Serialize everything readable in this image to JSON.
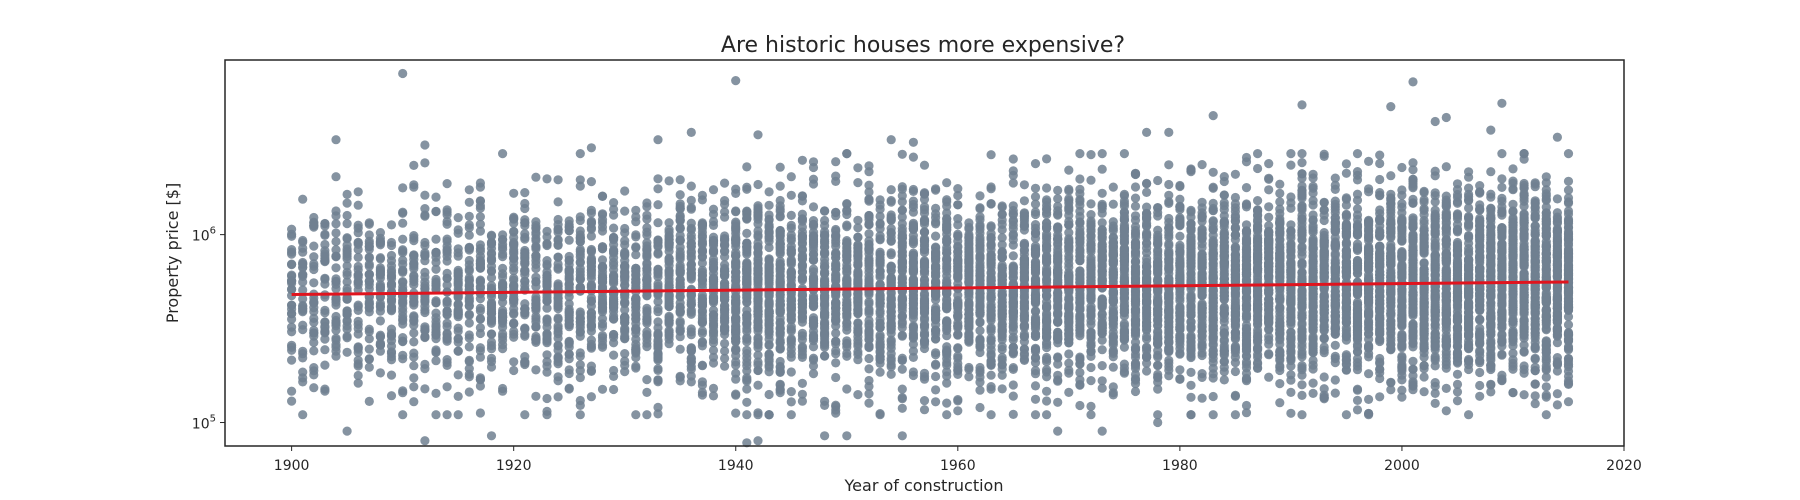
{
  "chart_data": {
    "type": "scatter",
    "title": "Are historic houses more expensive?",
    "xlabel": "Year of construction",
    "ylabel": "Property price [$]",
    "xlim": [
      1894,
      2020
    ],
    "ylim": [
      75000,
      8500000
    ],
    "y_scale": "log",
    "grid": false,
    "legend": "none",
    "x_ticks": [
      1900,
      1920,
      1940,
      1960,
      1980,
      2000,
      2020
    ],
    "y_ticks": [
      {
        "base": "10",
        "exp": "5",
        "value": 100000
      },
      {
        "base": "10",
        "exp": "6",
        "value": 1000000
      }
    ],
    "point_color": "#708090",
    "line_color": "#e0141e",
    "x_range": [
      1900,
      2015
    ],
    "regression_line": [
      {
        "x": 1900,
        "y": 480000
      },
      {
        "x": 2015,
        "y": 560000
      }
    ],
    "point_count_note": "",
    "series": [
      {
        "values": [
          {
            "x": 1910,
            "y": 7200000
          },
          {
            "x": 1940,
            "y": 6600000
          },
          {
            "x": 2001,
            "y": 6500000
          },
          {
            "x": 2009,
            "y": 5000000
          },
          {
            "x": 1991,
            "y": 4900000
          },
          {
            "x": 1999,
            "y": 4800000
          },
          {
            "x": 1983,
            "y": 4300000
          },
          {
            "x": 2003,
            "y": 4000000
          },
          {
            "x": 2004,
            "y": 4200000
          },
          {
            "x": 1936,
            "y": 3500000
          },
          {
            "x": 1977,
            "y": 3500000
          },
          {
            "x": 1979,
            "y": 3500000
          },
          {
            "x": 2008,
            "y": 3600000
          },
          {
            "x": 1942,
            "y": 3400000
          },
          {
            "x": 1904,
            "y": 3200000
          },
          {
            "x": 1933,
            "y": 3200000
          },
          {
            "x": 1954,
            "y": 3200000
          },
          {
            "x": 1956,
            "y": 3100000
          },
          {
            "x": 1912,
            "y": 3000000
          },
          {
            "x": 1927,
            "y": 2900000
          },
          {
            "x": 2014,
            "y": 3300000
          },
          {
            "x": 1905,
            "y": 90000
          },
          {
            "x": 1912,
            "y": 80000
          },
          {
            "x": 1918,
            "y": 85000
          },
          {
            "x": 1941,
            "y": 78000
          },
          {
            "x": 1942,
            "y": 80000
          },
          {
            "x": 1948,
            "y": 85000
          },
          {
            "x": 1950,
            "y": 85000
          },
          {
            "x": 1955,
            "y": 85000
          },
          {
            "x": 1969,
            "y": 90000
          },
          {
            "x": 1973,
            "y": 90000
          },
          {
            "x": 1900,
            "y": 130000
          },
          {
            "x": 1978,
            "y": 100000
          },
          {
            "x": 2012,
            "y": 160000
          },
          {
            "x": 2013,
            "y": 155000
          }
        ]
      }
    ]
  }
}
